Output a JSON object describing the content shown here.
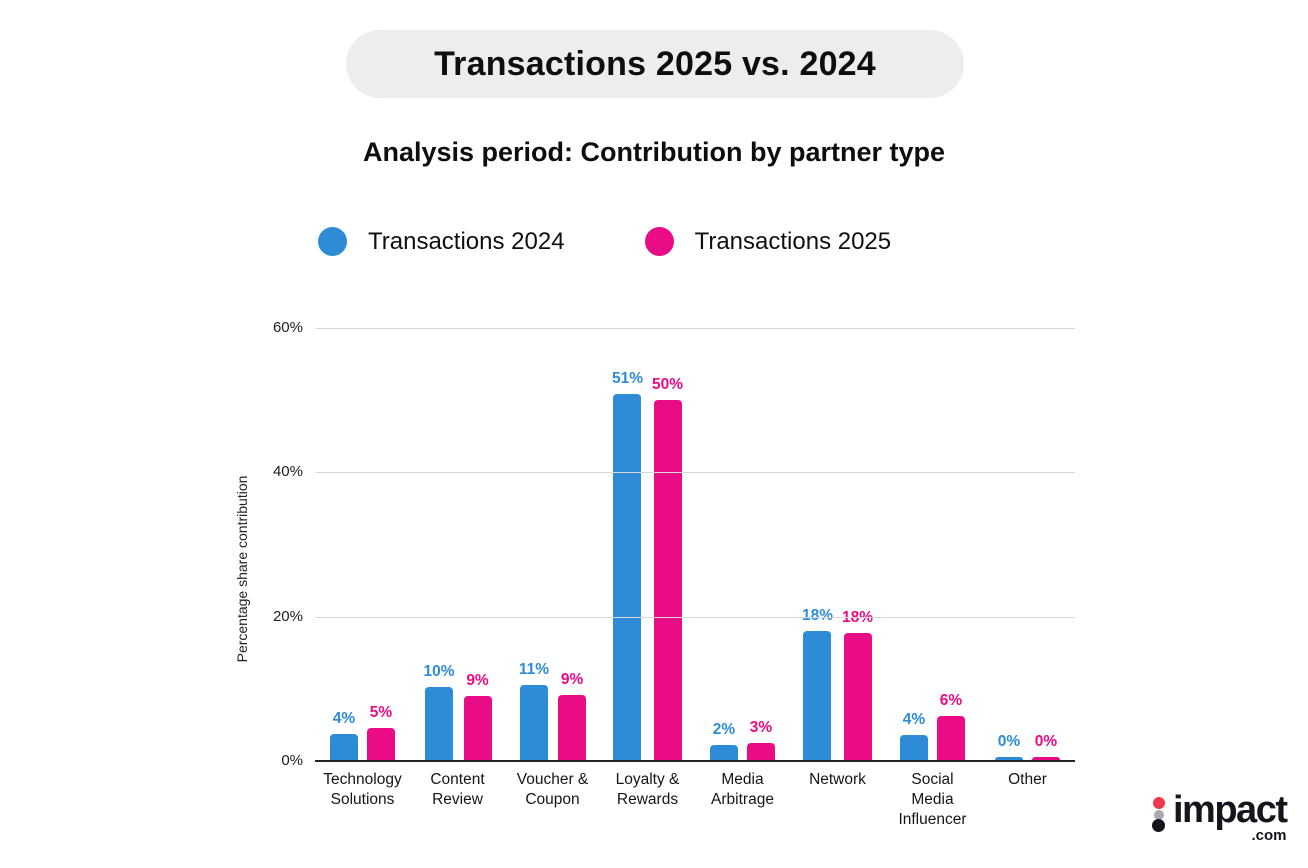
{
  "header": {
    "title": "Transactions 2025 vs. 2024",
    "subtitle": "Analysis period: Contribution by partner type",
    "title_pill_bg": "#ededed"
  },
  "legend": {
    "items": [
      {
        "label": "Transactions 2024",
        "color": "#2e8cd6"
      },
      {
        "label": "Transactions 2025",
        "color": "#ea0b86"
      }
    ]
  },
  "chart_data": {
    "type": "bar",
    "title": "Transactions 2025 vs. 2024",
    "subtitle": "Analysis period: Contribution by partner type",
    "xlabel": "",
    "ylabel": "Percentage share contribution",
    "ylim": [
      0,
      60
    ],
    "yticks": [
      "0%",
      "20%",
      "40%",
      "60%"
    ],
    "ytick_values": [
      0,
      20,
      40,
      60
    ],
    "grid": true,
    "legend_position": "top",
    "categories": [
      "Technology Solutions",
      "Content Review",
      "Voucher & Coupon",
      "Loyalty & Rewards",
      "Media Arbitrage",
      "Network",
      "Social Media Influencer",
      "Other"
    ],
    "category_lines": [
      [
        "Technology",
        "Solutions"
      ],
      [
        "Content",
        "Review"
      ],
      [
        "Voucher &",
        "Coupon"
      ],
      [
        "Loyalty &",
        "Rewards"
      ],
      [
        "Media",
        "Arbitrage"
      ],
      [
        "Network"
      ],
      [
        "Social",
        "Media",
        "Influencer"
      ],
      [
        "Other"
      ]
    ],
    "series": [
      {
        "name": "Transactions 2024",
        "color": "#2e8cd6",
        "values": [
          4,
          10,
          11,
          51,
          2,
          18,
          4,
          0
        ],
        "labels": [
          "4%",
          "10%",
          "11%",
          "51%",
          "2%",
          "18%",
          "4%",
          "0%"
        ],
        "visual_heights_pct": [
          3.6,
          10.1,
          10.4,
          50.7,
          2.1,
          17.9,
          3.5,
          0.4
        ]
      },
      {
        "name": "Transactions 2025",
        "color": "#ea0b86",
        "values": [
          5,
          9,
          9,
          50,
          3,
          18,
          6,
          0
        ],
        "labels": [
          "5%",
          "9%",
          "9%",
          "50%",
          "3%",
          "18%",
          "6%",
          "0%"
        ],
        "visual_heights_pct": [
          4.4,
          8.9,
          9.0,
          49.9,
          2.4,
          17.6,
          6.1,
          0.4
        ]
      }
    ]
  },
  "branding": {
    "logo_text": "impact",
    "logo_suffix": ".com",
    "dot_colors": [
      "#ef3a4d",
      "#a9a9ad",
      "#16131a"
    ]
  }
}
